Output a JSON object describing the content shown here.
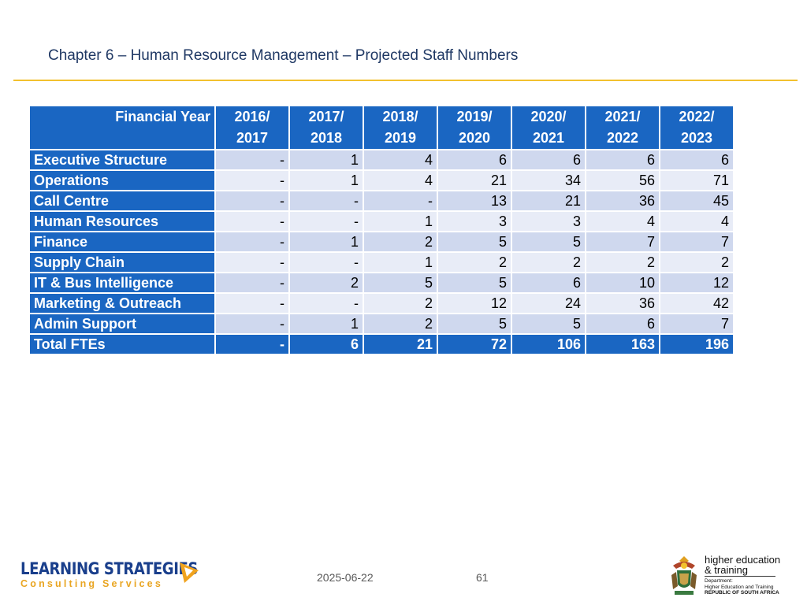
{
  "header": {
    "title": "Chapter 6 – Human Resource Management – Projected Staff Numbers"
  },
  "table": {
    "corner_label": "Financial Year",
    "years": [
      [
        "2016/",
        "2017"
      ],
      [
        "2017/",
        "2018"
      ],
      [
        "2018/",
        "2019"
      ],
      [
        "2019/",
        "2020"
      ],
      [
        "2020/",
        "2021"
      ],
      [
        "2021/",
        "2022"
      ],
      [
        "2022/",
        "2023"
      ]
    ],
    "rows": [
      {
        "label": "Executive Structure",
        "values": [
          "-",
          "1",
          "4",
          "6",
          "6",
          "6",
          "6"
        ]
      },
      {
        "label": "Operations",
        "values": [
          "-",
          "1",
          "4",
          "21",
          "34",
          "56",
          "71"
        ]
      },
      {
        "label": "Call Centre",
        "values": [
          "-",
          "-",
          "-",
          "13",
          "21",
          "36",
          "45"
        ]
      },
      {
        "label": "Human Resources",
        "values": [
          "-",
          "-",
          "1",
          "3",
          "3",
          "4",
          "4"
        ]
      },
      {
        "label": "Finance",
        "values": [
          "-",
          "1",
          "2",
          "5",
          "5",
          "7",
          "7"
        ]
      },
      {
        "label": "Supply Chain",
        "values": [
          "-",
          "-",
          "1",
          "2",
          "2",
          "2",
          "2"
        ]
      },
      {
        "label": "IT & Bus Intelligence",
        "values": [
          "-",
          "2",
          "5",
          "5",
          "6",
          "10",
          "12"
        ]
      },
      {
        "label": "Marketing & Outreach",
        "values": [
          "-",
          "-",
          "2",
          "12",
          "24",
          "36",
          "42"
        ]
      },
      {
        "label": "Admin Support",
        "values": [
          "-",
          "1",
          "2",
          "5",
          "5",
          "6",
          "7"
        ]
      }
    ],
    "total": {
      "label": "Total FTEs",
      "values": [
        "-",
        "6",
        "21",
        "72",
        "106",
        "163",
        "196"
      ]
    }
  },
  "footer": {
    "date": "2025-06-22",
    "page_number": "61",
    "logo_left": {
      "main": "LEARNING STRATEGIES",
      "sub": "Consulting Services",
      "icon": "play-triangle-icon"
    },
    "logo_right": {
      "line1": "higher education",
      "line2": "& training",
      "dept1": "Department:",
      "dept2": "Higher Education and Training",
      "dept3": "REPUBLIC OF SOUTH AFRICA",
      "icon": "coat-of-arms-icon"
    }
  },
  "colors": {
    "header_blue": "#1a66c2",
    "row_dark": "#cfd8ee",
    "row_light": "#e8ecf7",
    "rule": "#f2c12e",
    "title": "#1f3864"
  }
}
